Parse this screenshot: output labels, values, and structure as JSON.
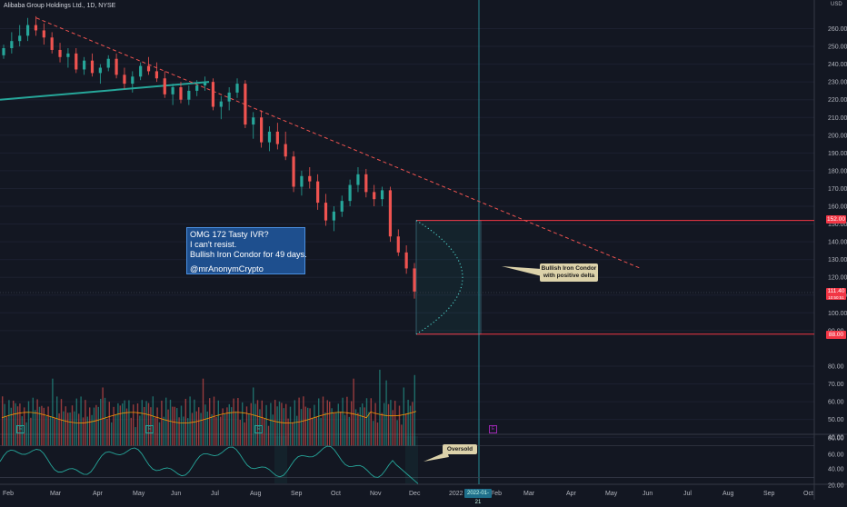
{
  "header": {
    "symbol_title": "Alibaba Group Holdings Ltd., 1D, NYSE",
    "currency": "USD"
  },
  "price_axis": {
    "ticks": [
      "260.00",
      "250.00",
      "240.00",
      "230.00",
      "220.00",
      "210.00",
      "200.00",
      "190.00",
      "180.00",
      "170.00",
      "160.00",
      "150.00",
      "140.00",
      "130.00",
      "120.00",
      "110.00",
      "100.00",
      "90.00",
      "80.00",
      "70.00",
      "60.00",
      "50.00",
      "40.00"
    ],
    "tags": {
      "upper": "152.00",
      "current": "111.40",
      "current_sub": "10:50:51",
      "lower": "88.00"
    }
  },
  "oscillator_axis": {
    "ticks": [
      "80.00",
      "60.00",
      "40.00",
      "20.00"
    ]
  },
  "time_axis": {
    "labels": [
      "Feb",
      "Mar",
      "Apr",
      "May",
      "Jun",
      "Jul",
      "Aug",
      "Sep",
      "Oct",
      "Nov",
      "Dec",
      "2022",
      "Feb",
      "Mar",
      "Apr",
      "May",
      "Jun",
      "Jul",
      "Aug",
      "Sep",
      "Oct"
    ],
    "cursor_date": "2022-01-21"
  },
  "note": {
    "lines": [
      "OMG 172 Tasty IVR?",
      "I can't resist.",
      "Bullish Iron Condor for 49 days.",
      "",
      "@mrAnonymCrypto"
    ]
  },
  "callouts": {
    "condor_line1": "Bullish Iron Condor",
    "condor_line2": "with positive delta",
    "oversold": "Oversold"
  },
  "earnings_badges": [
    "E",
    "E",
    "E",
    "E"
  ],
  "colors": {
    "background": "#131722",
    "up": "#26a69a",
    "down": "#ef5350",
    "trendline": "#26a69a",
    "downtrend": "#ef5350",
    "range_line": "#f23645",
    "note_fill": "#1e4f8e",
    "callout_fill": "#dcd2aa",
    "rsi_line": "#26a69a",
    "cursor_line": "#2aa7b0"
  },
  "chart_data": {
    "type": "candlestick",
    "ylim": [
      35,
      265
    ],
    "candles": [
      [
        245,
        251,
        243,
        249
      ],
      [
        249,
        258,
        246,
        253
      ],
      [
        253,
        262,
        250,
        256
      ],
      [
        256,
        266,
        253,
        262
      ],
      [
        262,
        267,
        256,
        259
      ],
      [
        259,
        263,
        251,
        255
      ],
      [
        255,
        258,
        246,
        248
      ],
      [
        248,
        252,
        241,
        244
      ],
      [
        244,
        249,
        238,
        246
      ],
      [
        246,
        249,
        235,
        237
      ],
      [
        237,
        244,
        234,
        242
      ],
      [
        242,
        246,
        233,
        235
      ],
      [
        235,
        240,
        229,
        238
      ],
      [
        238,
        245,
        236,
        243
      ],
      [
        243,
        246,
        232,
        234
      ],
      [
        234,
        238,
        226,
        229
      ],
      [
        229,
        236,
        224,
        233
      ],
      [
        233,
        241,
        231,
        239
      ],
      [
        239,
        244,
        234,
        236
      ],
      [
        236,
        241,
        230,
        232
      ],
      [
        232,
        236,
        221,
        223
      ],
      [
        223,
        229,
        217,
        227
      ],
      [
        227,
        230,
        218,
        220
      ],
      [
        220,
        228,
        217,
        225
      ],
      [
        225,
        231,
        222,
        228
      ],
      [
        228,
        233,
        225,
        230
      ],
      [
        230,
        232,
        214,
        216
      ],
      [
        216,
        222,
        209,
        219
      ],
      [
        219,
        227,
        214,
        224
      ],
      [
        224,
        232,
        221,
        229
      ],
      [
        229,
        231,
        204,
        206
      ],
      [
        206,
        213,
        198,
        210
      ],
      [
        210,
        214,
        193,
        196
      ],
      [
        196,
        205,
        191,
        202
      ],
      [
        202,
        207,
        192,
        195
      ],
      [
        195,
        202,
        186,
        188
      ],
      [
        188,
        191,
        168,
        171
      ],
      [
        171,
        180,
        166,
        177
      ],
      [
        177,
        182,
        170,
        174
      ],
      [
        174,
        178,
        158,
        162
      ],
      [
        162,
        167,
        149,
        152
      ],
      [
        152,
        160,
        146,
        157
      ],
      [
        157,
        166,
        154,
        163
      ],
      [
        163,
        175,
        160,
        172
      ],
      [
        172,
        182,
        168,
        178
      ],
      [
        178,
        181,
        165,
        168
      ],
      [
        168,
        172,
        160,
        164
      ],
      [
        164,
        171,
        160,
        169
      ],
      [
        169,
        171,
        140,
        143
      ],
      [
        143,
        147,
        132,
        134
      ],
      [
        134,
        138,
        122,
        125
      ],
      [
        125,
        128,
        108,
        112
      ]
    ],
    "trendline_support": [
      [
        0,
        220
      ],
      [
        230,
        230
      ]
    ],
    "downtrend": [
      [
        40,
        266
      ],
      [
        705,
        125
      ]
    ],
    "condor_range": {
      "upper": 152,
      "lower": 88,
      "days": 49
    },
    "rsi_range": [
      20,
      80
    ]
  }
}
